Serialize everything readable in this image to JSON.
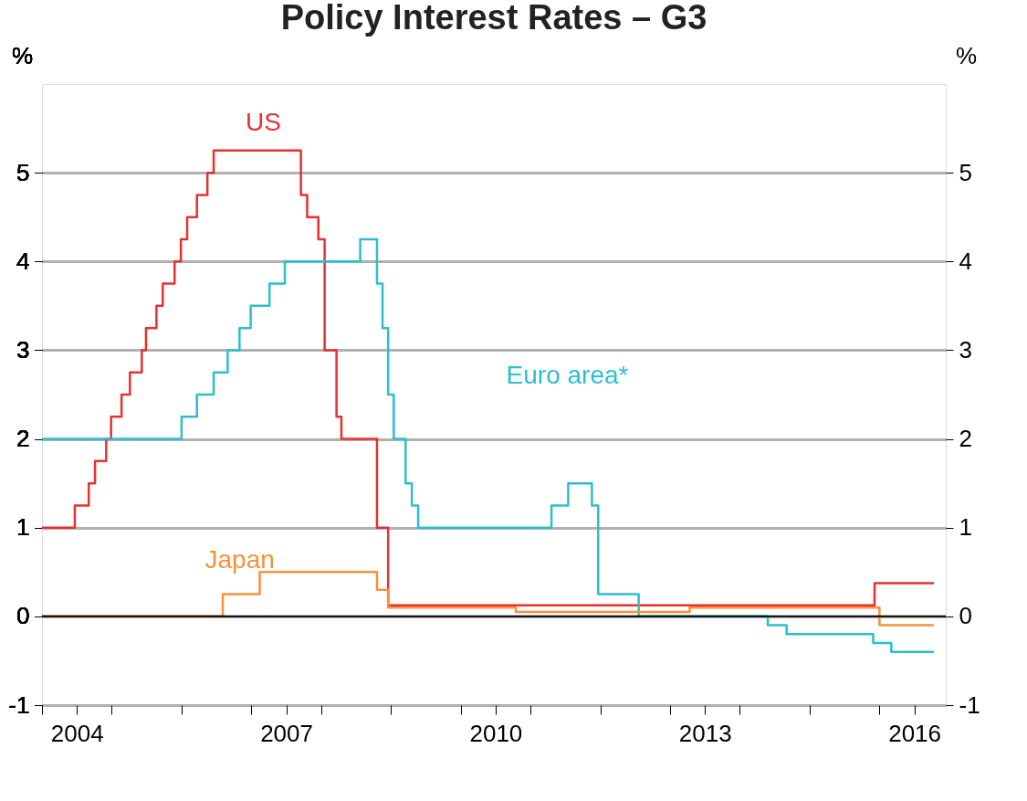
{
  "chart_data": {
    "type": "step",
    "title": "Policy Interest Rates – G3",
    "ylabel": "%",
    "y2label": "%",
    "xlim": [
      2004,
      2016.95
    ],
    "ylim": [
      -1,
      6
    ],
    "y2lim": [
      -1,
      6
    ],
    "yticks": [
      -1,
      0,
      1,
      2,
      3,
      4,
      5
    ],
    "y2ticks": [
      -1,
      0,
      1,
      2,
      3,
      4,
      5
    ],
    "xticks": [
      {
        "value": 2004,
        "label": null
      },
      {
        "value": 2004.5,
        "label": "2004"
      },
      {
        "value": 2005,
        "label": null
      },
      {
        "value": 2006,
        "label": null
      },
      {
        "value": 2007,
        "label": null
      },
      {
        "value": 2007.5,
        "label": "2007"
      },
      {
        "value": 2008,
        "label": null
      },
      {
        "value": 2009,
        "label": null
      },
      {
        "value": 2010,
        "label": null
      },
      {
        "value": 2010.5,
        "label": "2010"
      },
      {
        "value": 2011,
        "label": null
      },
      {
        "value": 2012,
        "label": null
      },
      {
        "value": 2013,
        "label": null
      },
      {
        "value": 2013.5,
        "label": "2013"
      },
      {
        "value": 2014,
        "label": null
      },
      {
        "value": 2015,
        "label": null
      },
      {
        "value": 2016,
        "label": null
      },
      {
        "value": 2016.5,
        "label": "2016"
      }
    ],
    "grid": "y",
    "legend": false,
    "ref_lines": [
      {
        "axis": "y",
        "value": 0,
        "color": "#000000"
      }
    ],
    "series": [
      {
        "name": "US",
        "color": "#e8312f",
        "x": [
          2004,
          2004.47,
          2004.67,
          2004.76,
          2004.92,
          2004.99,
          2005.14,
          2005.26,
          2005.43,
          2005.49,
          2005.64,
          2005.73,
          2005.9,
          2005.99,
          2006.08,
          2006.22,
          2006.37,
          2006.46,
          2007.71,
          2007.8,
          2007.96,
          2008.05,
          2008.22,
          2008.29,
          2008.8,
          2008.96,
          2015.93,
          2016.78
        ],
        "values": [
          1.0,
          1.25,
          1.5,
          1.75,
          2.0,
          2.25,
          2.5,
          2.75,
          3.0,
          3.25,
          3.5,
          3.75,
          4.0,
          4.25,
          4.5,
          4.75,
          5.0,
          5.25,
          4.75,
          4.5,
          4.25,
          3.0,
          2.25,
          2.0,
          1.0,
          0.125,
          0.375,
          0.375
        ]
      },
      {
        "name": "Euro area*",
        "color": "#2bbfcf",
        "x": [
          2004,
          2006.0,
          2006.22,
          2006.46,
          2006.66,
          2006.83,
          2006.99,
          2007.26,
          2007.48,
          2008.56,
          2008.8,
          2008.88,
          2008.96,
          2009.04,
          2009.21,
          2009.3,
          2009.39,
          2011.3,
          2011.54,
          2011.88,
          2011.97,
          2012.55,
          2014.4,
          2014.67,
          2015.91,
          2016.17,
          2016.78
        ],
        "values": [
          2.0,
          2.25,
          2.5,
          2.75,
          3.0,
          3.25,
          3.5,
          3.75,
          4.0,
          4.25,
          3.75,
          3.25,
          2.5,
          2.0,
          1.5,
          1.25,
          1.0,
          1.25,
          1.5,
          1.25,
          0.25,
          0.0,
          -0.1,
          -0.2,
          -0.3,
          -0.4,
          -0.4
        ]
      },
      {
        "name": "Japan",
        "color": "#f7923a",
        "x": [
          2004,
          2006.59,
          2007.12,
          2008.8,
          2008.96,
          2010.79,
          2013.28,
          2016.0,
          2016.78
        ],
        "values": [
          0.0,
          0.25,
          0.5,
          0.3,
          0.1,
          0.05,
          0.1,
          -0.1,
          -0.1
        ]
      }
    ]
  }
}
